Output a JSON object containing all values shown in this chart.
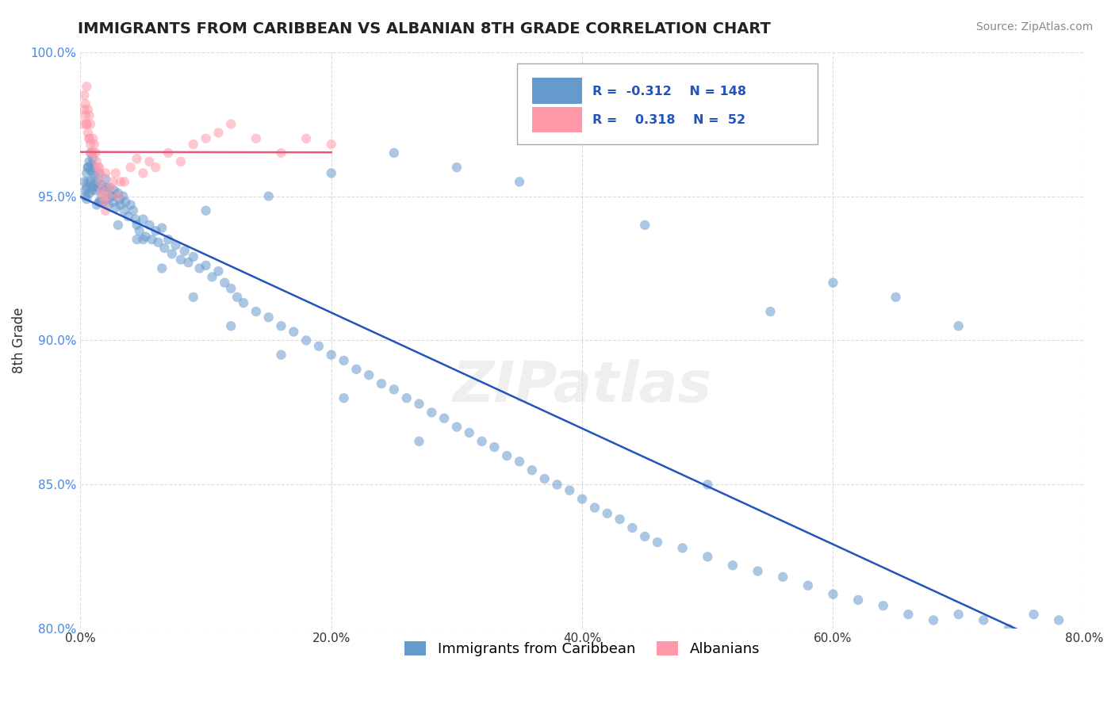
{
  "title": "IMMIGRANTS FROM CARIBBEAN VS ALBANIAN 8TH GRADE CORRELATION CHART",
  "source_text": "Source: ZipAtlas.com",
  "xlabel_text": "",
  "ylabel_text": "8th Grade",
  "watermark": "ZIPatlas",
  "xlim": [
    0.0,
    80.0
  ],
  "ylim": [
    80.0,
    100.0
  ],
  "xticks": [
    0.0,
    20.0,
    40.0,
    60.0,
    80.0
  ],
  "yticks": [
    80.0,
    85.0,
    90.0,
    95.0,
    100.0
  ],
  "xtick_labels": [
    "0.0%",
    "20.0%",
    "40.0%",
    "60.0%",
    "80.0%"
  ],
  "ytick_labels": [
    "80.0%",
    "85.0%",
    "90.0%",
    "95.0%",
    "100.0%"
  ],
  "blue_R": -0.312,
  "blue_N": 148,
  "pink_R": 0.318,
  "pink_N": 52,
  "blue_color": "#6699CC",
  "pink_color": "#FF99AA",
  "blue_line_color": "#2255BB",
  "pink_line_color": "#EE5577",
  "legend_blue_label": "Immigrants from Caribbean",
  "legend_pink_label": "Albanians",
  "blue_x": [
    0.3,
    0.4,
    0.5,
    0.5,
    0.6,
    0.6,
    0.7,
    0.7,
    0.8,
    0.8,
    0.9,
    0.9,
    1.0,
    1.0,
    1.1,
    1.1,
    1.2,
    1.2,
    1.3,
    1.4,
    1.5,
    1.5,
    1.6,
    1.7,
    1.8,
    1.9,
    2.0,
    2.1,
    2.2,
    2.3,
    2.5,
    2.6,
    2.7,
    2.8,
    3.0,
    3.1,
    3.2,
    3.4,
    3.5,
    3.6,
    3.8,
    4.0,
    4.2,
    4.4,
    4.5,
    4.7,
    5.0,
    5.2,
    5.5,
    5.7,
    6.0,
    6.2,
    6.5,
    6.7,
    7.0,
    7.3,
    7.6,
    8.0,
    8.3,
    8.6,
    9.0,
    9.5,
    10.0,
    10.5,
    11.0,
    11.5,
    12.0,
    12.5,
    13.0,
    14.0,
    15.0,
    16.0,
    17.0,
    18.0,
    19.0,
    20.0,
    21.0,
    22.0,
    23.0,
    24.0,
    25.0,
    26.0,
    27.0,
    28.0,
    29.0,
    30.0,
    31.0,
    32.0,
    33.0,
    34.0,
    35.0,
    36.0,
    37.0,
    38.0,
    39.0,
    40.0,
    41.0,
    42.0,
    43.0,
    44.0,
    45.0,
    46.0,
    48.0,
    50.0,
    52.0,
    54.0,
    56.0,
    58.0,
    60.0,
    62.0,
    64.0,
    66.0,
    68.0,
    70.0,
    72.0,
    74.0,
    76.0,
    78.0,
    50.0,
    70.0,
    60.0,
    65.0,
    55.0,
    45.0,
    35.0,
    30.0,
    25.0,
    20.0,
    15.0,
    10.0,
    5.0,
    2.5,
    1.5,
    0.8,
    0.5,
    0.4,
    0.6,
    0.9,
    1.3,
    2.0,
    3.0,
    4.5,
    6.5,
    9.0,
    12.0,
    16.0,
    21.0,
    27.0
  ],
  "blue_y": [
    95.5,
    95.2,
    95.8,
    94.9,
    96.0,
    95.5,
    96.2,
    95.1,
    95.9,
    96.5,
    95.3,
    96.1,
    95.8,
    96.3,
    95.4,
    96.0,
    95.2,
    95.7,
    95.5,
    95.3,
    95.8,
    94.8,
    95.4,
    95.0,
    94.8,
    95.2,
    95.6,
    94.9,
    94.7,
    95.3,
    95.0,
    94.8,
    95.2,
    94.6,
    95.1,
    94.9,
    94.7,
    95.0,
    94.5,
    94.8,
    94.3,
    94.7,
    94.5,
    94.2,
    94.0,
    93.8,
    94.2,
    93.6,
    94.0,
    93.5,
    93.8,
    93.4,
    93.9,
    93.2,
    93.5,
    93.0,
    93.3,
    92.8,
    93.1,
    92.7,
    92.9,
    92.5,
    92.6,
    92.2,
    92.4,
    92.0,
    91.8,
    91.5,
    91.3,
    91.0,
    90.8,
    90.5,
    90.3,
    90.0,
    89.8,
    89.5,
    89.3,
    89.0,
    88.8,
    88.5,
    88.3,
    88.0,
    87.8,
    87.5,
    87.3,
    87.0,
    86.8,
    86.5,
    86.3,
    86.0,
    85.8,
    85.5,
    85.2,
    85.0,
    84.8,
    84.5,
    84.2,
    84.0,
    83.8,
    83.5,
    83.2,
    83.0,
    82.8,
    82.5,
    82.2,
    82.0,
    81.8,
    81.5,
    81.2,
    81.0,
    80.8,
    80.5,
    80.3,
    80.5,
    80.3,
    80.0,
    80.5,
    80.3,
    85.0,
    90.5,
    92.0,
    91.5,
    91.0,
    94.0,
    95.5,
    96.0,
    96.5,
    95.8,
    95.0,
    94.5,
    93.5,
    95.0,
    94.8,
    95.5,
    95.3,
    95.0,
    96.0,
    95.2,
    94.7,
    95.3,
    94.0,
    93.5,
    92.5,
    91.5,
    90.5,
    89.5,
    88.0,
    86.5
  ],
  "pink_x": [
    0.2,
    0.3,
    0.3,
    0.4,
    0.4,
    0.5,
    0.5,
    0.6,
    0.6,
    0.7,
    0.7,
    0.8,
    0.8,
    0.9,
    1.0,
    1.1,
    1.2,
    1.3,
    1.4,
    1.5,
    1.6,
    1.7,
    1.8,
    1.9,
    2.0,
    2.2,
    2.4,
    2.6,
    2.8,
    3.0,
    3.5,
    4.0,
    4.5,
    5.0,
    6.0,
    7.0,
    8.0,
    9.0,
    10.0,
    11.0,
    12.0,
    14.0,
    16.0,
    18.0,
    20.0,
    5.5,
    3.2,
    2.0,
    1.5,
    1.0,
    0.7,
    0.5
  ],
  "pink_y": [
    97.5,
    98.0,
    98.5,
    97.8,
    98.2,
    97.5,
    98.8,
    97.2,
    98.0,
    97.0,
    97.8,
    96.8,
    97.5,
    96.5,
    97.0,
    96.8,
    96.5,
    96.2,
    96.0,
    95.8,
    95.5,
    95.2,
    95.0,
    94.8,
    94.5,
    95.0,
    95.3,
    95.5,
    95.8,
    95.0,
    95.5,
    96.0,
    96.3,
    95.8,
    96.0,
    96.5,
    96.2,
    96.8,
    97.0,
    97.2,
    97.5,
    97.0,
    96.5,
    97.0,
    96.8,
    96.2,
    95.5,
    95.8,
    96.0,
    96.5,
    97.0,
    97.5
  ],
  "background_color": "#ffffff",
  "grid_color": "#cccccc"
}
